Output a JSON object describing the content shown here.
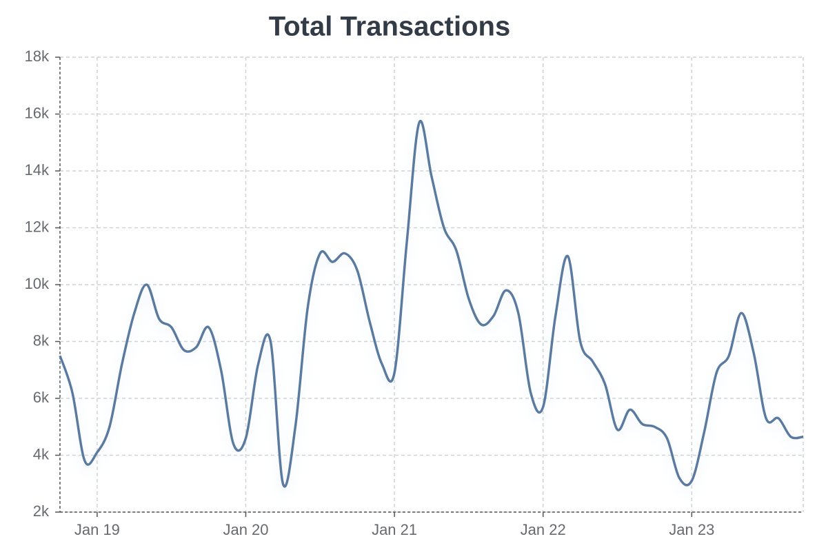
{
  "chart_data": {
    "type": "line",
    "title": "Total Transactions",
    "x": [
      "2018-10",
      "2018-11",
      "2018-12",
      "2019-01",
      "2019-02",
      "2019-03",
      "2019-04",
      "2019-05",
      "2019-06",
      "2019-07",
      "2019-08",
      "2019-09",
      "2019-10",
      "2019-11",
      "2019-12",
      "2020-01",
      "2020-02",
      "2020-03",
      "2020-04",
      "2020-05",
      "2020-06",
      "2020-07",
      "2020-08",
      "2020-09",
      "2020-10",
      "2020-11",
      "2020-12",
      "2021-01",
      "2021-02",
      "2021-03",
      "2021-04",
      "2021-05",
      "2021-06",
      "2021-07",
      "2021-08",
      "2021-09",
      "2021-10",
      "2021-11",
      "2021-12",
      "2022-01",
      "2022-02",
      "2022-03",
      "2022-04",
      "2022-05",
      "2022-06",
      "2022-07",
      "2022-08",
      "2022-09",
      "2022-10",
      "2022-11",
      "2022-12",
      "2023-01",
      "2023-02",
      "2023-03",
      "2023-04",
      "2023-05",
      "2023-06",
      "2023-07",
      "2023-08",
      "2023-09",
      "2023-10"
    ],
    "series": [
      {
        "name": "Total Transactions",
        "color": "#5a7aa0",
        "values": [
          7500,
          6200,
          3800,
          4100,
          5000,
          7200,
          9000,
          10000,
          8800,
          8500,
          7700,
          7800,
          8500,
          7000,
          4400,
          4600,
          7200,
          8000,
          3000,
          5000,
          9200,
          11100,
          10800,
          11100,
          10500,
          8700,
          7200,
          6900,
          11500,
          15700,
          13800,
          12000,
          11200,
          9500,
          8600,
          8900,
          9800,
          9000,
          6200,
          5700,
          8900,
          11000,
          8000,
          7300,
          6500,
          4900,
          5600,
          5100,
          5000,
          4600,
          3200,
          3100,
          4800,
          6900,
          7500,
          9000,
          7600,
          5300,
          5300,
          4650,
          4650
        ]
      }
    ],
    "xlim": [
      "2018-10",
      "2023-10"
    ],
    "xticks": [
      {
        "value": "2019-01",
        "label": "Jan 19"
      },
      {
        "value": "2020-01",
        "label": "Jan 20"
      },
      {
        "value": "2021-01",
        "label": "Jan 21"
      },
      {
        "value": "2022-01",
        "label": "Jan 22"
      },
      {
        "value": "2023-01",
        "label": "Jan 23"
      }
    ],
    "ylim": [
      2000,
      18000
    ],
    "yticks": [
      {
        "value": 2000,
        "label": "2k"
      },
      {
        "value": 4000,
        "label": "4k"
      },
      {
        "value": 6000,
        "label": "6k"
      },
      {
        "value": 8000,
        "label": "8k"
      },
      {
        "value": 10000,
        "label": "10k"
      },
      {
        "value": 12000,
        "label": "12k"
      },
      {
        "value": 14000,
        "label": "14k"
      },
      {
        "value": 16000,
        "label": "16k"
      },
      {
        "value": 18000,
        "label": "18k"
      }
    ],
    "grid": true
  }
}
